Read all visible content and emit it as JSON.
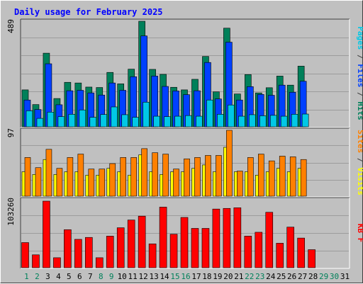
{
  "chart_data": {
    "type": "bar",
    "title": "Daily usage for February 2025",
    "categories": [
      "1",
      "2",
      "3",
      "4",
      "5",
      "6",
      "7",
      "8",
      "9",
      "10",
      "11",
      "12",
      "13",
      "14",
      "15",
      "16",
      "17",
      "18",
      "19",
      "20",
      "21",
      "22",
      "23",
      "24",
      "25",
      "26",
      "27",
      "28",
      "29",
      "30",
      "31"
    ],
    "weekend_days": [
      "1",
      "2",
      "8",
      "9",
      "15",
      "16",
      "22",
      "23",
      "29",
      "30"
    ],
    "panels": [
      {
        "name": "hits-files-pages",
        "y_max_label": "489",
        "ylim": [
          0,
          489
        ],
        "side_labels": [
          {
            "text": "Pages",
            "color": "#00c8e6"
          },
          {
            "text": " / ",
            "color": "#404040"
          },
          {
            "text": "Files",
            "color": "#0040ff"
          },
          {
            "text": " / ",
            "color": "#404040"
          },
          {
            "text": "Hits",
            "color": "#00805a"
          }
        ],
        "series": [
          {
            "name": "Hits",
            "color": "#00805a",
            "values": [
              171,
              103,
              341,
              131,
              206,
              203,
              184,
              182,
              252,
              199,
              267,
              489,
              266,
              243,
              183,
              171,
              220,
              326,
              162,
              457,
              152,
              242,
              157,
              181,
              235,
              193,
              281,
              0,
              0,
              0,
              0
            ]
          },
          {
            "name": "Files",
            "color": "#0040ff",
            "values": [
              124,
              80,
              292,
              102,
              167,
              169,
              157,
              147,
              203,
              169,
              232,
              421,
              235,
              187,
              166,
              149,
              167,
              298,
              129,
              392,
              124,
              186,
              150,
              146,
              193,
              160,
              211,
              0,
              0,
              0,
              0
            ]
          },
          {
            "name": "Pages",
            "color": "#00c8e6",
            "values": [
              74,
              39,
              68,
              47,
              58,
              78,
              44,
              57,
              92,
              56,
              44,
              114,
              49,
              47,
              49,
              52,
              49,
              124,
              58,
              101,
              49,
              56,
              51,
              53,
              49,
              58,
              59,
              0,
              0,
              0,
              0
            ]
          }
        ]
      },
      {
        "name": "visits-sites",
        "y_max_label": "97",
        "ylim": [
          0,
          97
        ],
        "side_labels": [
          {
            "text": "Sites",
            "color": "#ff8000"
          },
          {
            "text": " / ",
            "color": "#404040"
          },
          {
            "text": "Visits",
            "color": "#ffff00"
          }
        ],
        "series": [
          {
            "name": "Visits",
            "color": "#ffff00",
            "values": [
              36,
              32,
              54,
              32,
              36,
              36,
              31,
              31,
              41,
              36,
              31,
              61,
              36,
              32,
              36,
              36,
              41,
              46,
              36,
              72,
              36,
              36,
              31,
              36,
              41,
              36,
              41,
              0,
              0,
              0,
              0
            ]
          },
          {
            "name": "Sites",
            "color": "#ff8000",
            "values": [
              57,
              42,
              69,
              41,
              57,
              62,
              40,
              40,
              48,
              57,
              57,
              70,
              64,
              62,
              40,
              55,
              57,
              60,
              60,
              97,
              37,
              57,
              62,
              52,
              59,
              58,
              54,
              0,
              0,
              0,
              0
            ]
          }
        ]
      },
      {
        "name": "kbytes",
        "y_max_label": "103260",
        "ylim": [
          0,
          103260
        ],
        "side_labels": [
          {
            "text": "KB F",
            "color": "#ff0000"
          }
        ],
        "series": [
          {
            "name": "KB F",
            "color": "#ff0000",
            "values": [
              39000,
              20000,
              103260,
              15500,
              59000,
              44000,
              47000,
              15500,
              49000,
              62000,
              74000,
              80000,
              37000,
              94000,
              52000,
              78000,
              61000,
              61000,
              91000,
              92000,
              93000,
              49000,
              55000,
              86000,
              38000,
              63000,
              46000,
              28000,
              0,
              0,
              0
            ]
          }
        ]
      }
    ],
    "colors": {
      "title": "#0000ff",
      "weekday_label": "#000000",
      "weekend_label": "#00805a",
      "panel_bg": "#c0c0c0",
      "grid": "#9c9c9c"
    },
    "grid": true
  }
}
